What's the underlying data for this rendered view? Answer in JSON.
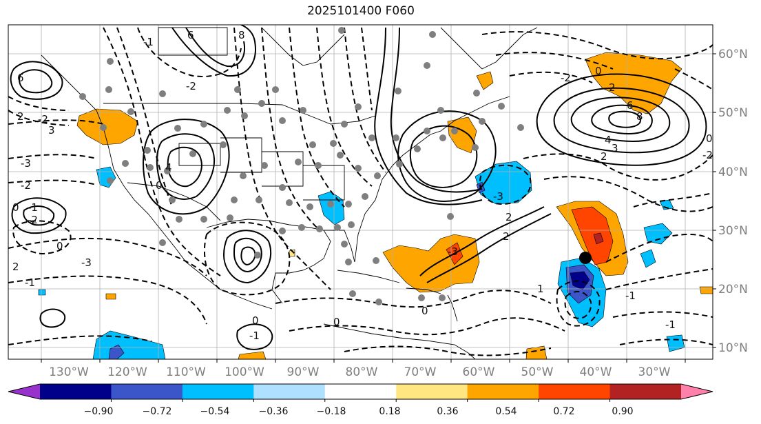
{
  "title": "2025101400 F060",
  "lon_labels": [
    "130°W",
    "120°W",
    "110°W",
    "100°W",
    "90°W",
    "80°W",
    "70°W",
    "60°W",
    "50°W",
    "40°W",
    "30°W"
  ],
  "lat_labels": [
    "60°N",
    "50°N",
    "40°N",
    "30°N",
    "20°N",
    "10°N"
  ],
  "colorbar": {
    "colors": [
      "#9932cc",
      "#00008b",
      "#3a56c9",
      "#00bfff",
      "#b0e0ff",
      "#ffffff",
      "#ffe680",
      "#ffa500",
      "#ff4500",
      "#b22222",
      "#ff80ab"
    ],
    "tick_labels": [
      "−0.90",
      "−0.72",
      "−0.54",
      "−0.36",
      "−0.18",
      "0.18",
      "0.36",
      "0.54",
      "0.72",
      "0.90"
    ]
  },
  "contour_labels": [
    {
      "text": "6"
    },
    {
      "text": "2"
    },
    {
      "text": "-2"
    },
    {
      "text": "3"
    },
    {
      "text": "-3"
    },
    {
      "text": "-2"
    },
    {
      "text": "-1"
    },
    {
      "text": "0"
    },
    {
      "text": "-2"
    },
    {
      "text": "2"
    },
    {
      "text": "0"
    },
    {
      "text": "-1"
    },
    {
      "text": "8"
    },
    {
      "text": "-1"
    },
    {
      "text": "6"
    },
    {
      "text": "4"
    },
    {
      "text": "0"
    },
    {
      "text": "-3"
    },
    {
      "text": "-2"
    },
    {
      "text": "-3"
    },
    {
      "text": "2"
    },
    {
      "text": "-2"
    },
    {
      "text": "0"
    },
    {
      "text": "2"
    },
    {
      "text": "6"
    },
    {
      "text": "8"
    },
    {
      "text": "4"
    },
    {
      "text": "3"
    },
    {
      "text": "2"
    },
    {
      "text": "0"
    },
    {
      "text": "-2"
    },
    {
      "text": "-1"
    },
    {
      "text": "0"
    },
    {
      "text": "0"
    },
    {
      "text": "0"
    },
    {
      "text": "-1"
    },
    {
      "text": "2"
    },
    {
      "text": "1"
    },
    {
      "text": "-1"
    },
    {
      "text": "-3"
    }
  ]
}
